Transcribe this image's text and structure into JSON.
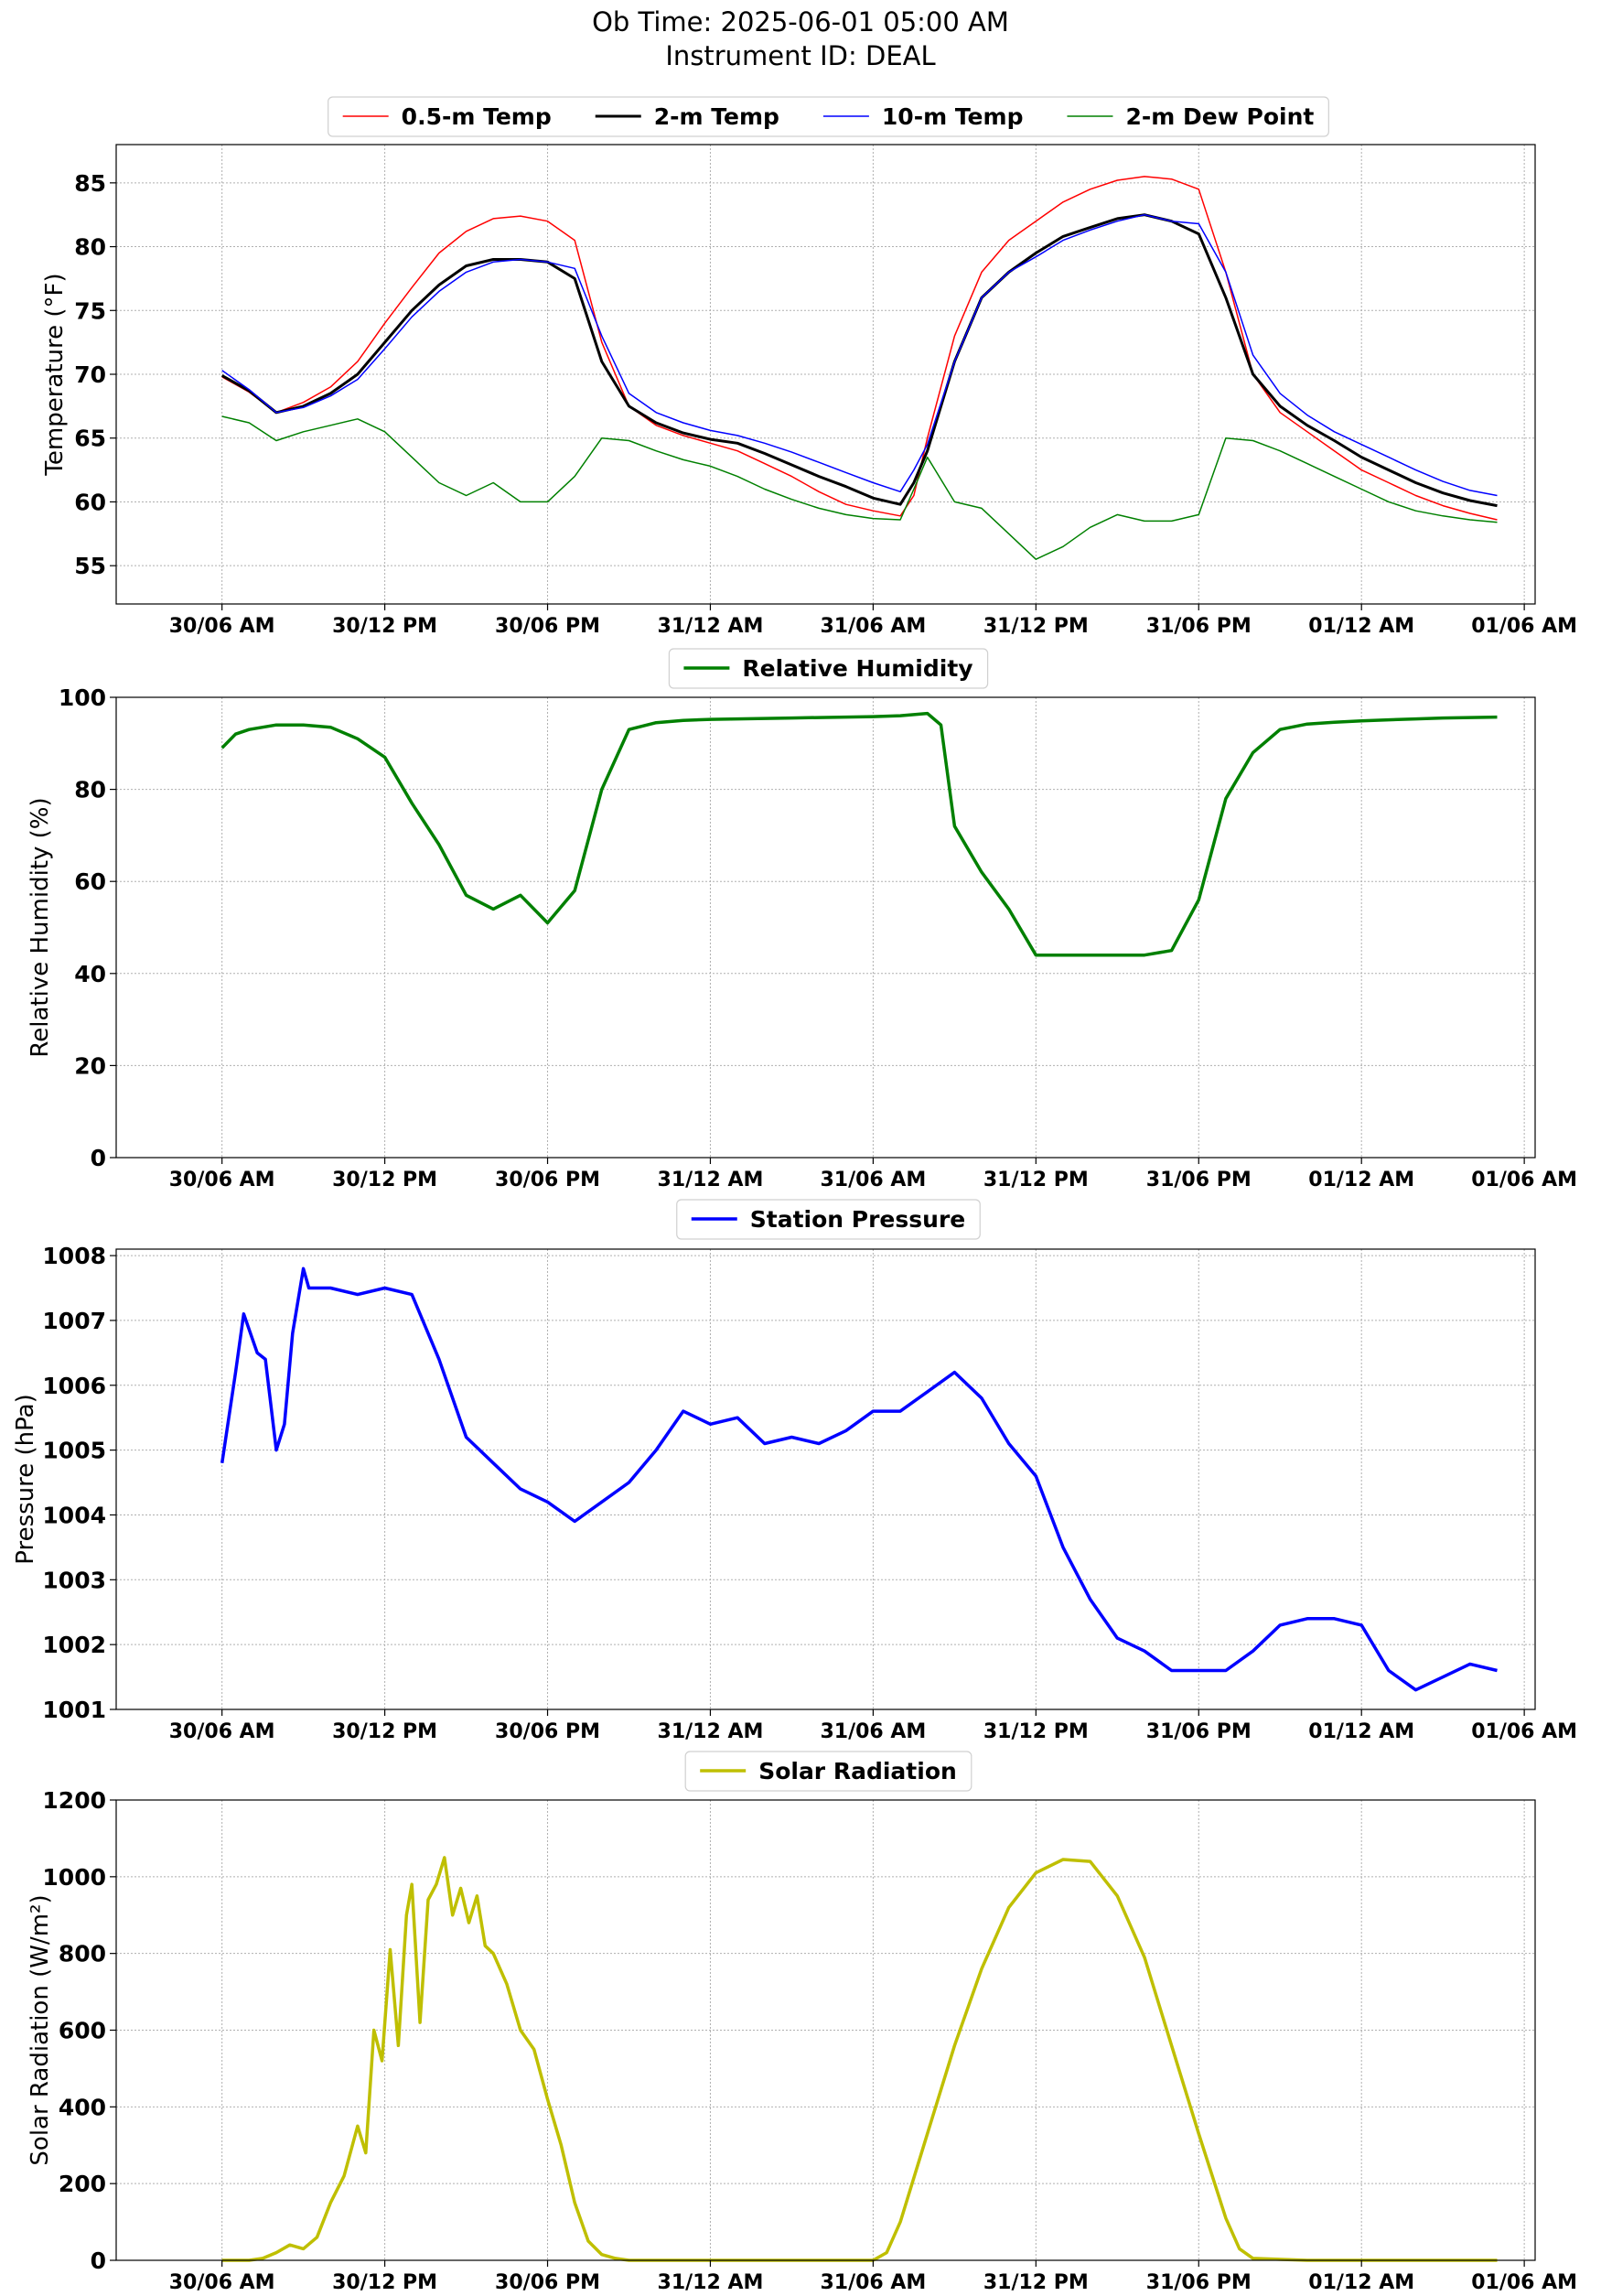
{
  "header": {
    "title_line1": "Ob Time: 2025-06-01 05:00 AM",
    "title_line2": "Instrument ID: DEAL"
  },
  "x_tick_labels": [
    "30/06 AM",
    "30/12 PM",
    "30/06 PM",
    "31/12 AM",
    "31/06 AM",
    "31/12 PM",
    "31/06 PM",
    "01/12 AM",
    "01/06 AM"
  ],
  "chart_data": [
    {
      "type": "line",
      "ylabel": "Temperature (°F)",
      "xlabel": "",
      "ylim": [
        52,
        88
      ],
      "yticks": [
        55,
        60,
        65,
        70,
        75,
        80,
        85
      ],
      "xlim_hours": [
        -3.9,
        48.4
      ],
      "grid": true,
      "legend_position": "top-center, above plot",
      "series": [
        {
          "name": "0.5-m Temp",
          "color": "#ff0000",
          "width": 1.5,
          "x": [
            0,
            1,
            2,
            3,
            4,
            5,
            6,
            7,
            8,
            9,
            10,
            11,
            12,
            13,
            14,
            15,
            16,
            17,
            18,
            19,
            20,
            21,
            22,
            23,
            24,
            25,
            25.5,
            26,
            27,
            28,
            29,
            30,
            31,
            32,
            33,
            34,
            35,
            36,
            37,
            38,
            39,
            40,
            41,
            42,
            43,
            44,
            45,
            46,
            47
          ],
          "y": [
            69.8,
            68.6,
            67.0,
            67.8,
            69.0,
            71.0,
            74.0,
            76.8,
            79.5,
            81.2,
            82.2,
            82.4,
            82.0,
            80.5,
            72.5,
            67.5,
            66.0,
            65.2,
            64.6,
            64.0,
            63.0,
            62.0,
            60.8,
            59.8,
            59.3,
            58.9,
            60.5,
            65.0,
            73.0,
            78.0,
            80.5,
            82.0,
            83.5,
            84.5,
            85.2,
            85.5,
            85.3,
            84.5,
            78.0,
            70.0,
            67.0,
            65.5,
            64.0,
            62.5,
            61.5,
            60.5,
            59.7,
            59.1,
            58.6
          ]
        },
        {
          "name": "2-m Temp",
          "color": "#000000",
          "width": 3,
          "x": [
            0,
            1,
            2,
            3,
            4,
            5,
            6,
            7,
            8,
            9,
            10,
            11,
            12,
            13,
            14,
            15,
            16,
            17,
            18,
            19,
            20,
            21,
            22,
            23,
            24,
            25,
            25.5,
            26,
            27,
            28,
            29,
            30,
            31,
            32,
            33,
            34,
            35,
            36,
            37,
            38,
            39,
            40,
            41,
            42,
            43,
            44,
            45,
            46,
            47
          ],
          "y": [
            69.9,
            68.7,
            67.0,
            67.5,
            68.5,
            70.0,
            72.5,
            75.0,
            77.0,
            78.5,
            79.0,
            79.0,
            78.8,
            77.5,
            71.0,
            67.5,
            66.2,
            65.4,
            64.9,
            64.6,
            63.8,
            62.9,
            62.0,
            61.2,
            60.3,
            59.8,
            61.5,
            64.0,
            71.0,
            76.0,
            78.0,
            79.5,
            80.8,
            81.5,
            82.2,
            82.5,
            82.0,
            81.0,
            76.0,
            70.0,
            67.5,
            66.0,
            64.8,
            63.5,
            62.5,
            61.5,
            60.7,
            60.1,
            59.7
          ]
        },
        {
          "name": "10-m Temp",
          "color": "#0000ff",
          "width": 1.5,
          "x": [
            0,
            1,
            2,
            3,
            4,
            5,
            6,
            7,
            8,
            9,
            10,
            11,
            12,
            13,
            14,
            15,
            16,
            17,
            18,
            19,
            20,
            21,
            22,
            23,
            24,
            25,
            25.5,
            26,
            27,
            28,
            29,
            30,
            31,
            32,
            33,
            34,
            35,
            36,
            37,
            38,
            39,
            40,
            41,
            42,
            43,
            44,
            45,
            46,
            47
          ],
          "y": [
            70.3,
            68.8,
            67.0,
            67.4,
            68.3,
            69.6,
            72.0,
            74.5,
            76.5,
            78.0,
            78.8,
            79.0,
            78.8,
            78.3,
            73.0,
            68.5,
            67.0,
            66.2,
            65.6,
            65.2,
            64.6,
            63.9,
            63.1,
            62.3,
            61.5,
            60.8,
            62.5,
            64.5,
            71.0,
            76.0,
            78.0,
            79.2,
            80.5,
            81.3,
            82.0,
            82.5,
            82.0,
            81.8,
            78.0,
            71.5,
            68.5,
            66.8,
            65.5,
            64.5,
            63.5,
            62.5,
            61.6,
            60.9,
            60.5
          ]
        },
        {
          "name": "2-m Dew Point",
          "color": "#008000",
          "width": 1.5,
          "x": [
            0,
            1,
            2,
            3,
            4,
            5,
            6,
            7,
            8,
            9,
            10,
            11,
            12,
            13,
            14,
            15,
            16,
            17,
            18,
            19,
            20,
            21,
            22,
            23,
            24,
            25,
            25.5,
            26,
            27,
            28,
            29,
            30,
            31,
            32,
            33,
            34,
            35,
            36,
            37,
            38,
            39,
            40,
            41,
            42,
            43,
            44,
            45,
            46,
            47
          ],
          "y": [
            66.7,
            66.2,
            64.8,
            65.5,
            66.0,
            66.5,
            65.5,
            63.5,
            61.5,
            60.5,
            61.5,
            60.0,
            60.0,
            62.0,
            65.0,
            64.8,
            64.0,
            63.3,
            62.8,
            62.0,
            61.0,
            60.2,
            59.5,
            59.0,
            58.7,
            58.6,
            61.0,
            63.5,
            60.0,
            59.5,
            57.5,
            55.5,
            56.5,
            58.0,
            59.0,
            58.5,
            58.5,
            59.0,
            65.0,
            64.8,
            64.0,
            63.0,
            62.0,
            61.0,
            60.0,
            59.3,
            58.9,
            58.6,
            58.4
          ]
        }
      ]
    },
    {
      "type": "line",
      "ylabel": "Relative Humidity (%)",
      "xlabel": "",
      "ylim": [
        0,
        100
      ],
      "yticks": [
        0,
        20,
        40,
        60,
        80,
        100
      ],
      "xlim_hours": [
        -3.9,
        48.4
      ],
      "grid": true,
      "legend_position": "top-center, above plot",
      "series": [
        {
          "name": "Relative Humidity",
          "color": "#008000",
          "width": 3.5,
          "x": [
            0,
            0.5,
            1,
            2,
            3,
            4,
            5,
            6,
            7,
            8,
            9,
            10,
            11,
            12,
            13,
            14,
            15,
            16,
            17,
            18,
            19,
            20,
            21,
            22,
            23,
            24,
            25,
            26,
            26.5,
            27,
            28,
            29,
            30,
            31,
            32,
            33,
            34,
            35,
            36,
            37,
            38,
            39,
            40,
            41,
            42,
            43,
            44,
            45,
            46,
            47
          ],
          "y": [
            89,
            92,
            93,
            94,
            94,
            93.5,
            91,
            87,
            77,
            68,
            57,
            54,
            57,
            51,
            58,
            80,
            93,
            94.5,
            95,
            95.2,
            95.3,
            95.4,
            95.5,
            95.6,
            95.7,
            95.8,
            96,
            96.5,
            94,
            72,
            62,
            54,
            44,
            44,
            44,
            44,
            44,
            45,
            56,
            78,
            88,
            93,
            94.2,
            94.6,
            94.9,
            95.1,
            95.3,
            95.5,
            95.6,
            95.7
          ]
        }
      ]
    },
    {
      "type": "line",
      "ylabel": "Pressure (hPa)",
      "xlabel": "",
      "ylim": [
        1001,
        1008.1
      ],
      "yticks": [
        1001,
        1002,
        1003,
        1004,
        1005,
        1006,
        1007,
        1008
      ],
      "xlim_hours": [
        -3.9,
        48.4
      ],
      "grid": true,
      "legend_position": "top-center, above plot",
      "series": [
        {
          "name": "Station Pressure",
          "color": "#0000ff",
          "width": 3.5,
          "x": [
            0,
            0.5,
            0.8,
            1.3,
            1.6,
            2,
            2.3,
            2.6,
            3,
            3.2,
            4,
            5,
            6,
            7,
            8,
            9,
            10,
            11,
            12,
            13,
            14,
            15,
            16,
            17,
            18,
            19,
            20,
            21,
            22,
            23,
            24,
            25,
            26,
            27,
            28,
            29,
            30,
            31,
            32,
            33,
            34,
            35,
            36,
            37,
            38,
            39,
            40,
            41,
            42,
            43,
            44,
            45,
            46,
            47
          ],
          "y": [
            1004.8,
            1006.2,
            1007.1,
            1006.5,
            1006.4,
            1005.0,
            1005.4,
            1006.8,
            1007.8,
            1007.5,
            1007.5,
            1007.4,
            1007.5,
            1007.4,
            1006.4,
            1005.2,
            1004.8,
            1004.4,
            1004.2,
            1003.9,
            1004.2,
            1004.5,
            1005.0,
            1005.6,
            1005.4,
            1005.5,
            1005.1,
            1005.2,
            1005.1,
            1005.3,
            1005.6,
            1005.6,
            1005.9,
            1006.2,
            1005.8,
            1005.1,
            1004.6,
            1003.5,
            1002.7,
            1002.1,
            1001.9,
            1001.6,
            1001.6,
            1001.6,
            1001.9,
            1002.3,
            1002.4,
            1002.4,
            1002.3,
            1001.6,
            1001.3,
            1001.5,
            1001.7,
            1001.6
          ]
        }
      ]
    },
    {
      "type": "line",
      "ylabel": "Solar Radiation (W/m²)",
      "xlabel": "",
      "ylim": [
        0,
        1200
      ],
      "yticks": [
        0,
        200,
        400,
        600,
        800,
        1000,
        1200
      ],
      "xlim_hours": [
        -3.9,
        48.4
      ],
      "grid": true,
      "legend_position": "top-center, above plot",
      "series": [
        {
          "name": "Solar Radiation",
          "color": "#bfbf00",
          "width": 3.5,
          "x": [
            0,
            1,
            1.5,
            2,
            2.5,
            3,
            3.5,
            4,
            4.5,
            5,
            5.3,
            5.6,
            5.9,
            6.2,
            6.5,
            6.8,
            7.0,
            7.3,
            7.6,
            7.9,
            8.2,
            8.5,
            8.8,
            9.1,
            9.4,
            9.7,
            10,
            10.5,
            11,
            11.5,
            12,
            12.5,
            13,
            13.5,
            14,
            14.5,
            15,
            16,
            20,
            24,
            24.5,
            25,
            26,
            27,
            28,
            29,
            30,
            31,
            32,
            33,
            34,
            35,
            36,
            37,
            37.5,
            38,
            40,
            44,
            47
          ],
          "y": [
            0,
            0,
            5,
            20,
            40,
            30,
            60,
            150,
            220,
            350,
            280,
            600,
            520,
            810,
            560,
            900,
            980,
            620,
            940,
            980,
            1050,
            900,
            970,
            880,
            950,
            820,
            800,
            720,
            600,
            550,
            420,
            300,
            150,
            50,
            15,
            5,
            0,
            0,
            0,
            0,
            20,
            100,
            330,
            560,
            760,
            920,
            1010,
            1045,
            1040,
            950,
            790,
            560,
            330,
            110,
            30,
            5,
            0,
            0,
            0
          ]
        }
      ]
    }
  ]
}
